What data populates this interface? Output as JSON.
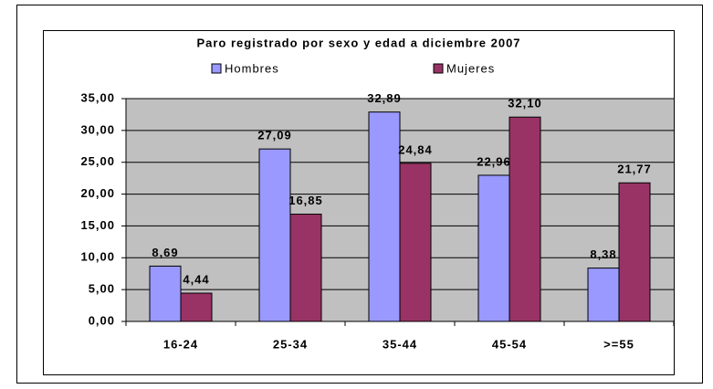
{
  "chart_data": {
    "type": "bar",
    "title": "Paro registrado por sexo y edad a diciembre 2007",
    "categories": [
      "16-24",
      "25-34",
      "35-44",
      "45-54",
      ">=55"
    ],
    "series": [
      {
        "name": "Hombres",
        "color": "#9999ff",
        "values": [
          8.69,
          27.09,
          32.89,
          22.96,
          8.38
        ],
        "value_labels": [
          "8,69",
          "27,09",
          "32,89",
          "22,96",
          "8,38"
        ]
      },
      {
        "name": "Mujeres",
        "color": "#993366",
        "values": [
          4.44,
          16.85,
          24.84,
          32.1,
          21.77
        ],
        "value_labels": [
          "4,44",
          "16,85",
          "24,84",
          "32,10",
          "21,77"
        ]
      }
    ],
    "ylim": [
      0,
      35
    ],
    "yticks": [
      {
        "value": 0,
        "label": "0,00"
      },
      {
        "value": 5,
        "label": "5,00"
      },
      {
        "value": 10,
        "label": "10,00"
      },
      {
        "value": 15,
        "label": "15,00"
      },
      {
        "value": 20,
        "label": "20,00"
      },
      {
        "value": 25,
        "label": "25,00"
      },
      {
        "value": 30,
        "label": "30,00"
      },
      {
        "value": 35,
        "label": "35,00"
      }
    ],
    "grid": true,
    "plot_background": "#c0c0c0",
    "legend": "top"
  }
}
